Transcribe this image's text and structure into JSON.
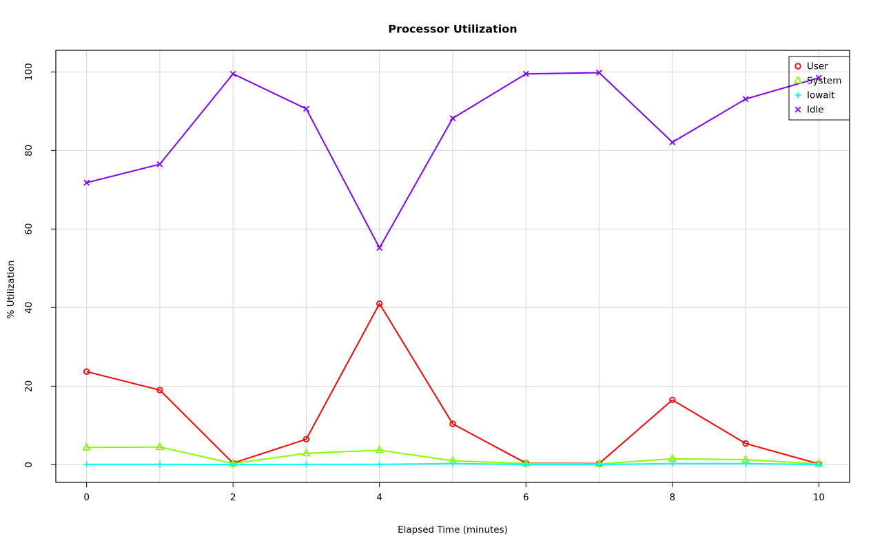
{
  "title": "Processor Utilization",
  "chart_data": {
    "type": "line",
    "title": "Processor Utilization",
    "xlabel": "Elapsed Time (minutes)",
    "ylabel": "% Utilization",
    "x": [
      0,
      1,
      2,
      3,
      4,
      5,
      6,
      7,
      8,
      9,
      10
    ],
    "series": [
      {
        "name": "User",
        "marker": "circle",
        "color": "#ff0000",
        "values": [
          23.7,
          19.0,
          0.4,
          6.5,
          41.0,
          10.4,
          0.4,
          0.3,
          16.5,
          5.4,
          0.2
        ]
      },
      {
        "name": "System",
        "marker": "triangle",
        "color": "#80ff00",
        "values": [
          4.4,
          4.5,
          0.3,
          2.9,
          3.7,
          1.0,
          0.3,
          0.2,
          1.5,
          1.3,
          0.2
        ]
      },
      {
        "name": "Iowait",
        "marker": "plus",
        "color": "#00ffff",
        "values": [
          0.1,
          0.1,
          0.05,
          0.1,
          0.1,
          0.3,
          0.05,
          0.05,
          0.3,
          0.3,
          0.05
        ]
      },
      {
        "name": "Idle",
        "marker": "x",
        "color": "#8000ff",
        "values": [
          71.8,
          76.5,
          99.5,
          90.6,
          55.2,
          88.2,
          99.5,
          99.8,
          82.1,
          93.1,
          98.5
        ]
      }
    ],
    "xticks": [
      0,
      2,
      4,
      6,
      8,
      10
    ],
    "yticks": [
      0,
      20,
      40,
      60,
      80,
      100
    ],
    "xlim": [
      -0.42,
      10.42
    ],
    "ylim": [
      -4.5,
      105.5
    ],
    "grid": {
      "x": [
        0,
        1,
        2,
        3,
        4,
        5,
        6,
        7,
        8,
        9,
        10
      ],
      "y": [
        0,
        20,
        40,
        60,
        80,
        100
      ]
    },
    "grid_color": "#d6d6d6",
    "line_width": 2,
    "legend": {
      "position": "top-right",
      "items": [
        "User",
        "System",
        "Iowait",
        "Idle"
      ]
    }
  }
}
